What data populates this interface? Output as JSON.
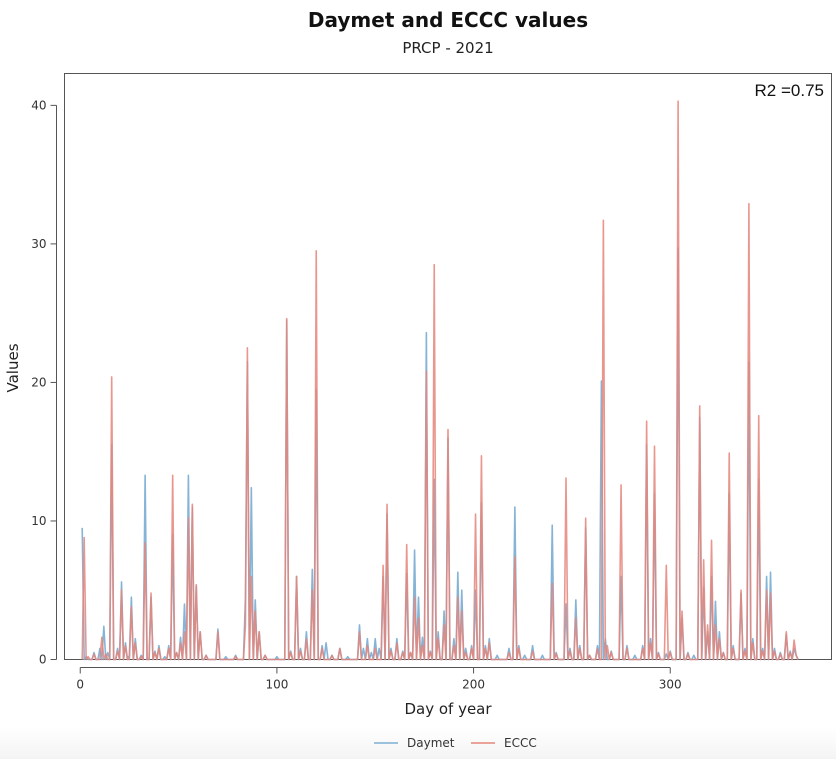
{
  "chart_data": {
    "type": "line",
    "title": "Daymet and ECCC values",
    "subtitle": "PRCP - 2021",
    "xlabel": "Day of year",
    "ylabel": "Values",
    "xlim": [
      -8,
      382
    ],
    "ylim": [
      0,
      42.3
    ],
    "xticks": [
      0,
      100,
      200,
      300
    ],
    "yticks": [
      0,
      10,
      20,
      30,
      40
    ],
    "annotation": "R2 =0.75",
    "legend_position": "bottom",
    "series": [
      {
        "name": "Daymet",
        "color": "#7eb0d5",
        "peaks": [
          [
            1,
            9.5
          ],
          [
            3,
            0.2
          ],
          [
            7,
            0.5
          ],
          [
            10,
            0.8
          ],
          [
            12,
            2.4
          ],
          [
            14,
            0.5
          ],
          [
            16,
            15.5
          ],
          [
            19,
            0.8
          ],
          [
            21,
            5.6
          ],
          [
            23,
            1.2
          ],
          [
            25,
            0.3
          ],
          [
            26,
            4.5
          ],
          [
            28,
            1.5
          ],
          [
            31,
            0.3
          ],
          [
            33,
            13.3
          ],
          [
            36,
            4.5
          ],
          [
            38,
            0.6
          ],
          [
            40,
            1.0
          ],
          [
            43,
            0.2
          ],
          [
            45,
            1.0
          ],
          [
            47,
            9.0
          ],
          [
            49,
            0.5
          ],
          [
            51,
            1.6
          ],
          [
            53,
            4.0
          ],
          [
            55,
            13.3
          ],
          [
            57,
            11.0
          ],
          [
            59,
            5.3
          ],
          [
            61,
            2.0
          ],
          [
            64,
            0.3
          ],
          [
            70,
            2.2
          ],
          [
            74,
            0.2
          ],
          [
            79,
            0.3
          ],
          [
            84,
            4.5
          ],
          [
            85,
            21.5
          ],
          [
            87,
            12.4
          ],
          [
            89,
            4.3
          ],
          [
            91,
            2.0
          ],
          [
            94,
            0.3
          ],
          [
            100,
            0.2
          ],
          [
            105,
            24.5
          ],
          [
            107,
            0.6
          ],
          [
            110,
            6.0
          ],
          [
            112,
            0.8
          ],
          [
            115,
            2.0
          ],
          [
            118,
            6.5
          ],
          [
            120,
            19.5
          ],
          [
            123,
            1.0
          ],
          [
            125,
            1.2
          ],
          [
            128,
            0.3
          ],
          [
            132,
            0.8
          ],
          [
            136,
            0.2
          ],
          [
            142,
            2.5
          ],
          [
            144,
            0.8
          ],
          [
            146,
            1.5
          ],
          [
            148,
            0.5
          ],
          [
            150,
            1.5
          ],
          [
            152,
            0.8
          ],
          [
            154,
            6.0
          ],
          [
            156,
            10.5
          ],
          [
            158,
            0.8
          ],
          [
            161,
            1.5
          ],
          [
            164,
            0.6
          ],
          [
            166,
            6.2
          ],
          [
            168,
            0.5
          ],
          [
            170,
            7.9
          ],
          [
            172,
            4.5
          ],
          [
            174,
            1.6
          ],
          [
            176,
            23.6
          ],
          [
            178,
            0.6
          ],
          [
            180,
            13.0
          ],
          [
            182,
            2.0
          ],
          [
            185,
            3.5
          ],
          [
            187,
            16.0
          ],
          [
            190,
            1.5
          ],
          [
            192,
            6.3
          ],
          [
            194,
            5.0
          ],
          [
            196,
            0.8
          ],
          [
            199,
            1.0
          ],
          [
            201,
            5.0
          ],
          [
            204,
            11.3
          ],
          [
            206,
            1.0
          ],
          [
            208,
            1.5
          ],
          [
            212,
            0.3
          ],
          [
            218,
            0.8
          ],
          [
            221,
            11.0
          ],
          [
            223,
            1.0
          ],
          [
            226,
            0.3
          ],
          [
            230,
            1.0
          ],
          [
            235,
            0.3
          ],
          [
            240,
            9.7
          ],
          [
            242,
            0.5
          ],
          [
            247,
            4.0
          ],
          [
            249,
            0.8
          ],
          [
            252,
            4.3
          ],
          [
            254,
            1.0
          ],
          [
            257,
            9.5
          ],
          [
            259,
            0.3
          ],
          [
            263,
            1.0
          ],
          [
            265,
            20.1
          ],
          [
            267,
            1.5
          ],
          [
            270,
            0.6
          ],
          [
            275,
            6.0
          ],
          [
            278,
            1.0
          ],
          [
            282,
            0.3
          ],
          [
            286,
            1.0
          ],
          [
            288,
            15.5
          ],
          [
            290,
            1.5
          ],
          [
            292,
            12.0
          ],
          [
            294,
            0.5
          ],
          [
            298,
            0.4
          ],
          [
            300,
            0.6
          ],
          [
            304,
            29.7
          ],
          [
            306,
            3.0
          ],
          [
            309,
            0.5
          ],
          [
            312,
            0.3
          ],
          [
            315,
            17.5
          ],
          [
            317,
            5.2
          ],
          [
            319,
            2.0
          ],
          [
            321,
            6.0
          ],
          [
            323,
            4.2
          ],
          [
            325,
            2.0
          ],
          [
            327,
            0.5
          ],
          [
            330,
            12.0
          ],
          [
            332,
            1.0
          ],
          [
            336,
            4.8
          ],
          [
            338,
            0.8
          ],
          [
            340,
            21.5
          ],
          [
            342,
            1.5
          ],
          [
            345,
            13.0
          ],
          [
            347,
            0.8
          ],
          [
            349,
            6.0
          ],
          [
            351,
            6.3
          ],
          [
            353,
            0.8
          ],
          [
            356,
            0.5
          ],
          [
            359,
            1.8
          ],
          [
            361,
            0.6
          ],
          [
            363,
            0.8
          ],
          [
            364,
            0.3
          ]
        ]
      },
      {
        "name": "ECCC",
        "color": "#e5857a",
        "peaks": [
          [
            2,
            8.8
          ],
          [
            4,
            0.2
          ],
          [
            7,
            0.4
          ],
          [
            11,
            1.6
          ],
          [
            13,
            0.4
          ],
          [
            16,
            20.4
          ],
          [
            19,
            0.6
          ],
          [
            21,
            5.0
          ],
          [
            23,
            1.0
          ],
          [
            26,
            3.8
          ],
          [
            28,
            1.2
          ],
          [
            31,
            0.2
          ],
          [
            33,
            8.4
          ],
          [
            36,
            4.8
          ],
          [
            38,
            0.5
          ],
          [
            40,
            0.8
          ],
          [
            45,
            0.8
          ],
          [
            47,
            13.3
          ],
          [
            49,
            0.5
          ],
          [
            51,
            1.2
          ],
          [
            53,
            2.0
          ],
          [
            55,
            10.2
          ],
          [
            57,
            11.2
          ],
          [
            59,
            5.4
          ],
          [
            61,
            2.0
          ],
          [
            64,
            0.3
          ],
          [
            70,
            2.0
          ],
          [
            79,
            0.2
          ],
          [
            84,
            2.5
          ],
          [
            85,
            22.5
          ],
          [
            87,
            6.0
          ],
          [
            89,
            3.5
          ],
          [
            91,
            2.0
          ],
          [
            94,
            0.3
          ],
          [
            105,
            24.6
          ],
          [
            107,
            0.5
          ],
          [
            110,
            6.0
          ],
          [
            112,
            0.6
          ],
          [
            115,
            1.5
          ],
          [
            118,
            5.0
          ],
          [
            120,
            29.5
          ],
          [
            123,
            0.8
          ],
          [
            128,
            0.3
          ],
          [
            132,
            0.8
          ],
          [
            142,
            2.0
          ],
          [
            146,
            1.0
          ],
          [
            150,
            0.8
          ],
          [
            154,
            6.8
          ],
          [
            156,
            11.2
          ],
          [
            158,
            0.6
          ],
          [
            161,
            1.2
          ],
          [
            164,
            0.5
          ],
          [
            166,
            8.3
          ],
          [
            168,
            0.5
          ],
          [
            170,
            4.5
          ],
          [
            172,
            3.0
          ],
          [
            174,
            1.0
          ],
          [
            176,
            20.8
          ],
          [
            178,
            0.5
          ],
          [
            180,
            28.5
          ],
          [
            182,
            1.5
          ],
          [
            185,
            2.5
          ],
          [
            187,
            16.6
          ],
          [
            190,
            1.0
          ],
          [
            192,
            4.5
          ],
          [
            194,
            3.5
          ],
          [
            196,
            0.5
          ],
          [
            199,
            0.8
          ],
          [
            201,
            10.5
          ],
          [
            204,
            14.7
          ],
          [
            206,
            0.8
          ],
          [
            208,
            1.2
          ],
          [
            218,
            0.5
          ],
          [
            221,
            7.4
          ],
          [
            223,
            0.8
          ],
          [
            230,
            0.6
          ],
          [
            240,
            5.5
          ],
          [
            242,
            0.4
          ],
          [
            247,
            13.1
          ],
          [
            249,
            0.6
          ],
          [
            252,
            3.0
          ],
          [
            254,
            0.8
          ],
          [
            257,
            10.2
          ],
          [
            259,
            0.3
          ],
          [
            263,
            0.8
          ],
          [
            266,
            31.7
          ],
          [
            268,
            1.0
          ],
          [
            270,
            0.5
          ],
          [
            275,
            12.6
          ],
          [
            278,
            0.8
          ],
          [
            286,
            0.8
          ],
          [
            288,
            17.2
          ],
          [
            290,
            1.2
          ],
          [
            292,
            15.4
          ],
          [
            294,
            0.4
          ],
          [
            298,
            6.8
          ],
          [
            300,
            0.5
          ],
          [
            304,
            40.3
          ],
          [
            306,
            3.5
          ],
          [
            309,
            0.4
          ],
          [
            315,
            18.3
          ],
          [
            317,
            7.2
          ],
          [
            319,
            2.5
          ],
          [
            321,
            8.6
          ],
          [
            323,
            2.5
          ],
          [
            325,
            1.5
          ],
          [
            327,
            0.5
          ],
          [
            330,
            14.9
          ],
          [
            332,
            0.8
          ],
          [
            336,
            5.0
          ],
          [
            338,
            0.6
          ],
          [
            340,
            32.9
          ],
          [
            342,
            1.2
          ],
          [
            345,
            17.6
          ],
          [
            347,
            0.6
          ],
          [
            349,
            5.0
          ],
          [
            351,
            4.8
          ],
          [
            353,
            0.6
          ],
          [
            356,
            0.4
          ],
          [
            359,
            2.0
          ],
          [
            361,
            0.5
          ],
          [
            363,
            1.4
          ],
          [
            364,
            0.3
          ]
        ]
      }
    ]
  }
}
